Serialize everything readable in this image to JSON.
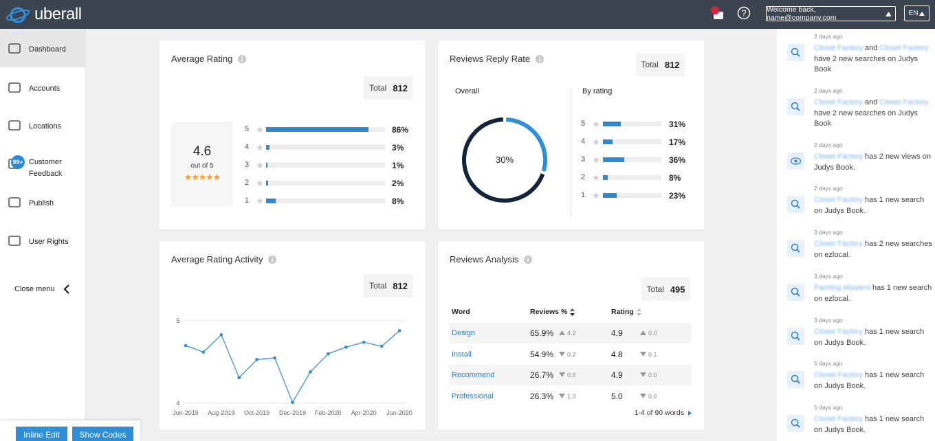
{
  "header": {
    "logo": "uberall",
    "help": "?",
    "welcome": "Welcome back, name@company.com",
    "language": "EN"
  },
  "sidebar": {
    "items": [
      {
        "label": "Dashboard",
        "active": true
      },
      {
        "label": "Accounts"
      },
      {
        "label": "Locations"
      },
      {
        "label": "Customer Feedback",
        "badge": "99+"
      },
      {
        "label": "Publish"
      },
      {
        "label": "User Rights"
      }
    ],
    "close": "Close menu"
  },
  "buttons": [
    "Inline Edit",
    "Show Codes"
  ],
  "average_rating": {
    "type": "bar",
    "title": "Average Rating",
    "total_label": "Total",
    "total": 812,
    "score": 4.6,
    "score_caption": "out of 5",
    "categories": [
      5,
      4,
      3,
      2,
      1
    ],
    "values": [
      86,
      3,
      1,
      2,
      8
    ],
    "value_labels": [
      "86%",
      "3%",
      "1%",
      "2%",
      "8%"
    ],
    "xlim": [
      0,
      100
    ],
    "color": "#2d8ad6"
  },
  "reply_rate": {
    "type": "bar",
    "title": "Reviews Reply Rate",
    "total_label": "Total",
    "total": 812,
    "overall_title": "Overall",
    "overall": {
      "value": 30,
      "label": "30%",
      "lim": [
        0,
        100
      ]
    },
    "by_rating_title": "By rating",
    "categories": [
      5,
      4,
      3,
      2,
      1
    ],
    "values": [
      31,
      17,
      36,
      8,
      23
    ],
    "value_labels": [
      "31%",
      "17%",
      "36%",
      "8%",
      "23%"
    ],
    "xlim": [
      0,
      100
    ],
    "color": "#2d8ad6"
  },
  "activity": {
    "type": "line",
    "title": "Average Rating Activity",
    "total_label": "Total",
    "total": 812,
    "categories": [
      "Jun-2019",
      null,
      "Aug-2019",
      null,
      "Oct-2019",
      null,
      "Dec-2019",
      null,
      "Feb-2020",
      null,
      "Apr-2020",
      null,
      "Jun-2020"
    ],
    "values": [
      4.7,
      4.62,
      4.83,
      4.31,
      4.53,
      4.55,
      4.01,
      4.38,
      4.6,
      4.68,
      4.74,
      4.69,
      4.88
    ],
    "ylim": [
      4,
      5
    ],
    "yticks": [
      4,
      5
    ],
    "grid": true,
    "color": "#2d8ad6"
  },
  "analysis": {
    "title": "Reviews Analysis",
    "total_label": "Total",
    "total": 495,
    "columns": [
      "Word",
      "Reviews %",
      "Rating"
    ],
    "rows": [
      {
        "word": "Design",
        "share": "65.9%",
        "share_delta": "4.2",
        "share_dir": "up",
        "rating": "4.9",
        "rating_delta": "0.0",
        "rating_dir": "up"
      },
      {
        "word": "Install",
        "share": "54.9%",
        "share_delta": "0.2",
        "share_dir": "down",
        "rating": "4.8",
        "rating_delta": "0.1",
        "rating_dir": "down"
      },
      {
        "word": "Recommend",
        "share": "26.7%",
        "share_delta": "0.6",
        "share_dir": "down",
        "rating": "4.9",
        "rating_delta": "0.0",
        "rating_dir": "down"
      },
      {
        "word": "Professional",
        "share": "26.3%",
        "share_delta": "1.0",
        "share_dir": "down",
        "rating": "5.0",
        "rating_delta": "0.0",
        "rating_dir": "down"
      }
    ],
    "pagination": "1-4 of 90 words"
  },
  "feed": [
    {
      "time": "2 days ago",
      "icon": "search",
      "segments": [
        {
          "text": "Closet Factory",
          "blur": true
        },
        {
          "text": "and"
        },
        {
          "text": "Closet Factory",
          "blur": true
        },
        {
          "text": "have 2 new searches on Judys Book"
        }
      ]
    },
    {
      "time": "2 days ago",
      "icon": "search",
      "segments": [
        {
          "text": "Closet Factory",
          "blur": true
        },
        {
          "text": "and"
        },
        {
          "text": "Closet Factory",
          "blur": true
        },
        {
          "text": "have 2 new searches on Judys Book"
        }
      ]
    },
    {
      "time": "2 days ago",
      "icon": "view",
      "segments": [
        {
          "text": "Closet Factory",
          "blur": true
        },
        {
          "text": "has 2 new views on Judys Book."
        }
      ]
    },
    {
      "time": "2 days ago",
      "icon": "search",
      "segments": [
        {
          "text": "Closet Factory",
          "blur": true
        },
        {
          "text": "has 1 new search on Judys Book."
        }
      ]
    },
    {
      "time": "3 days ago",
      "icon": "search",
      "segments": [
        {
          "text": "Closet Factory",
          "blur": true
        },
        {
          "text": "has 2 new searches on ezlocal."
        }
      ]
    },
    {
      "time": "3 days ago",
      "icon": "search",
      "segments": [
        {
          "text": "Painting Masters",
          "blur": true
        },
        {
          "text": "has 1 new search on ezlocal."
        }
      ]
    },
    {
      "time": "3 days ago",
      "icon": "search",
      "segments": [
        {
          "text": "Closet Factory",
          "blur": true
        },
        {
          "text": "has 1 new search on Judys Book."
        }
      ]
    },
    {
      "time": "5 days ago",
      "icon": "search",
      "segments": [
        {
          "text": "Closet Factory",
          "blur": true
        },
        {
          "text": "has 1 new search on Judys Book."
        }
      ]
    },
    {
      "time": "5 days ago",
      "icon": "search",
      "segments": [
        {
          "text": "Closet Factory",
          "blur": true
        },
        {
          "text": "has 1 new search on Judys Book."
        }
      ]
    }
  ]
}
